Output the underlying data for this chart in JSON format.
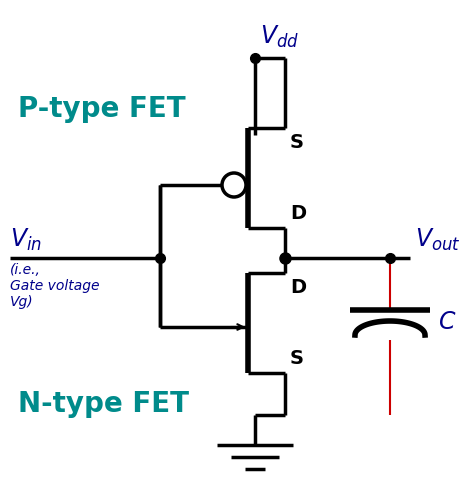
{
  "background_color": "#ffffff",
  "teal_color": "#008B8B",
  "blue_color": "#00008B",
  "black_color": "#000000",
  "red_color": "#CC0000",
  "p_fet_label": "P-type FET",
  "n_fet_label": "N-type FET",
  "vdd_label": "$V_{dd}$",
  "vin_label": "$V_{in}$",
  "vout_label": "$V_{out}$",
  "c_label": "$C$",
  "s_label": "S",
  "d_label": "D",
  "figsize": [
    4.74,
    4.91
  ],
  "dpi": 100
}
